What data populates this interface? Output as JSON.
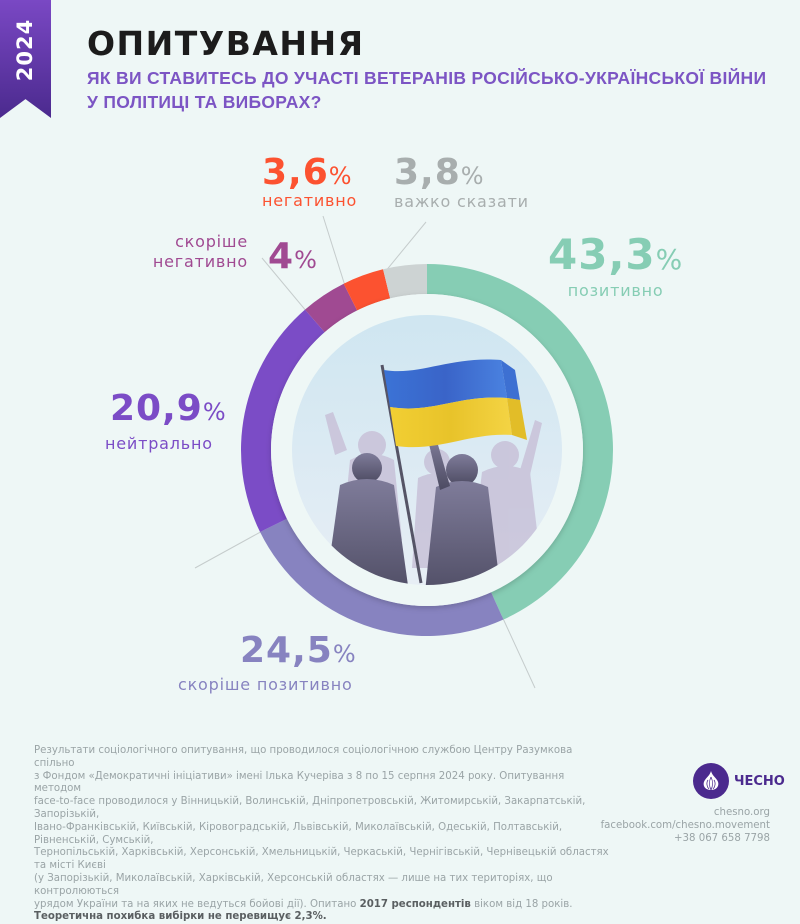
{
  "badge": {
    "year": "2024"
  },
  "header": {
    "title": "ОПИТУВАННЯ",
    "subtitle": "ЯК ВИ СТАВИТЕСЬ ДО УЧАСТІ ВЕТЕРАНІВ РОСІЙСЬКО-УКРАЇНСЬКОЇ ВІЙНИ У ПОЛІТИЦІ ТА ВИБОРАХ?"
  },
  "chart_data": {
    "type": "pie",
    "variant": "donut",
    "title": "Як ви ставитесь до участі ветеранів російсько-української війни у політиці та виборах?",
    "start": "top",
    "direction": "clockwise",
    "slices": [
      {
        "key": "positive",
        "label": "позитивно",
        "value": 43.3,
        "display": "43,3",
        "color": "#86cdb4"
      },
      {
        "key": "rather_positive",
        "label": "скоріше позитивно",
        "value": 24.5,
        "display": "24,5",
        "color": "#8783c0"
      },
      {
        "key": "neutral",
        "label": "нейтрально",
        "value": 20.9,
        "display": "20,9",
        "color": "#7b4cc6"
      },
      {
        "key": "rather_negative",
        "label": "скоріше негативно",
        "value": 4.0,
        "display": "4",
        "color": "#a04a92"
      },
      {
        "key": "negative",
        "label": "негативно",
        "value": 3.6,
        "display": "3,6",
        "color": "#fc5230"
      },
      {
        "key": "hard_to_say",
        "label": "важко сказати",
        "value": 3.8,
        "display": "3,8",
        "color": "#cdd3d3"
      }
    ],
    "percent_sign": "%",
    "center_image": "ukrainian-flag-crowd-illustration",
    "legend": "none (direct labels)"
  },
  "labels": {
    "positive": {
      "value": "43,3",
      "text": "позитивно"
    },
    "rather_positive": {
      "value": "24,5",
      "text": "скоріше позитивно"
    },
    "neutral": {
      "value": "20,9",
      "text": "нейтрально"
    },
    "rather_negative": {
      "value": "4",
      "text_line1": "скоріше",
      "text_line2": "негативно"
    },
    "negative": {
      "value": "3,6",
      "text": "негативно"
    },
    "hard_to_say": {
      "value": "3,8",
      "text": "важко сказати"
    },
    "pct": "%"
  },
  "footnote": {
    "line1": "Результати соціологічного опитування, що проводилося  соціологічною службою Центру Разумкова спільно",
    "line2": "з Фондом «Демократичні ініціативи» імені Ілька Кучеріва з 8 по 15 серпня 2024 року. Опитування методом",
    "line3": "face-to-face проводилося у Вінницькій, Волинській, Дніпропетровській, Житомирській, Закарпатській, Запорізькій,",
    "line4": "Івано-Франківській, Київській, Кіровоградській, Львівській, Миколаївській, Одеській, Полтавській, Рівненській, Сумській,",
    "line5": "Тернопільській, Харківській, Херсонській, Хмельницькій, Черкаській, Чернігівській, Чернівецькій областях та місті Києві",
    "line6": "(у Запорізькій, Миколаївській, Харківській, Херсонській областях — лише на тих територіях, що контролюються",
    "line7_a": "урядом України та на яких не ведуться бойові дії).  Опитано ",
    "line7_bold": "2017 респондентів",
    "line7_b": " віком від 18 років.",
    "line8_bold": "Теоретична похибка вибірки не перевищує 2,3%."
  },
  "brand": {
    "name": "ЧЕСНО",
    "website": "chesno.org",
    "facebook": "facebook.com/chesno.movement",
    "phone": "+38 067 658 7798"
  }
}
